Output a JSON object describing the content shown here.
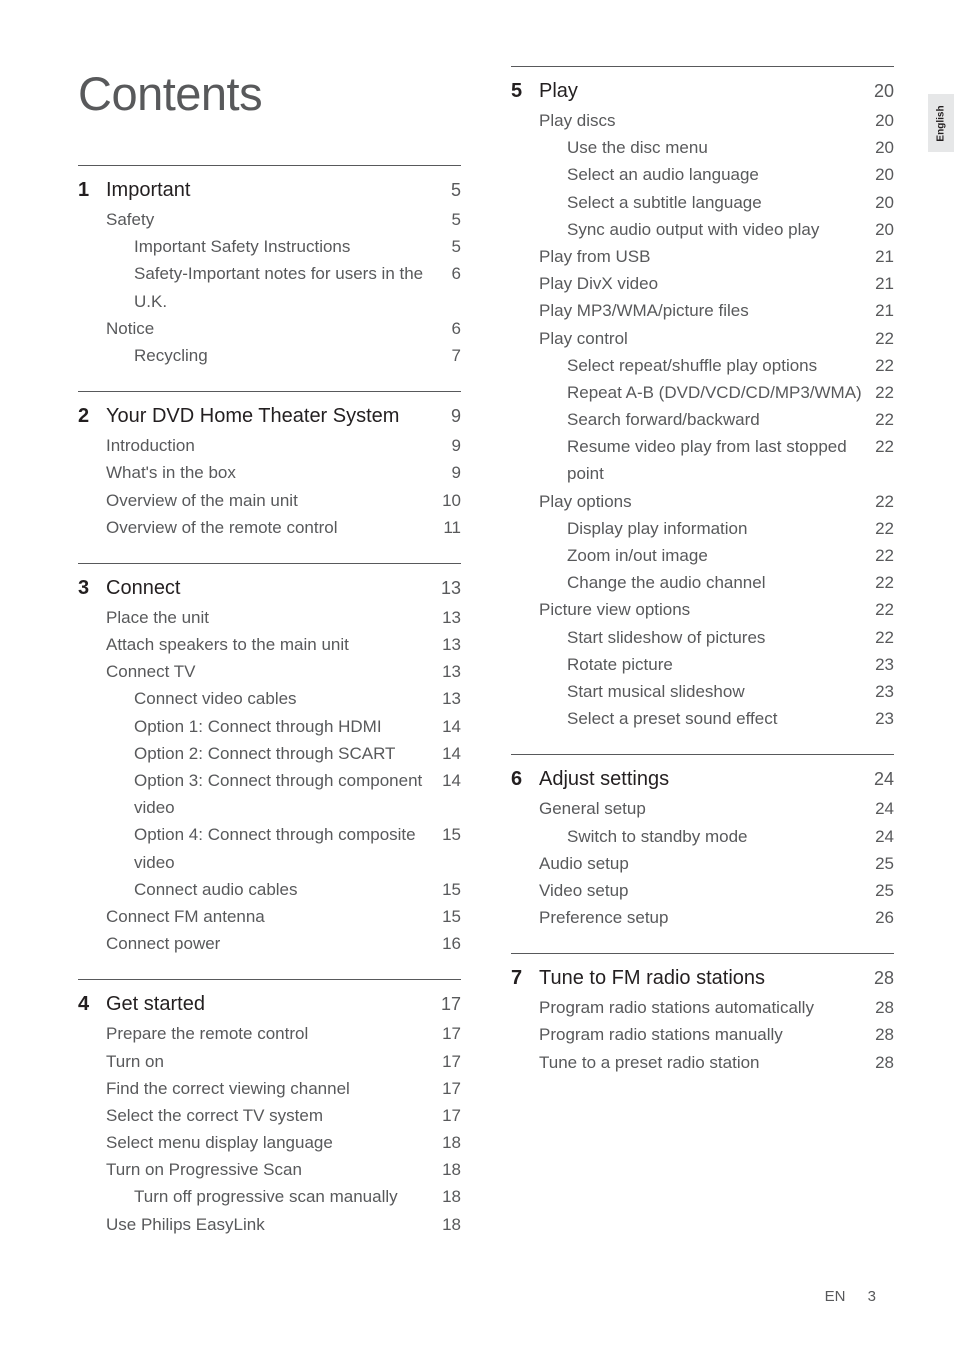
{
  "pageTitle": "Contents",
  "sideTab": "English",
  "footer": {
    "lang": "EN",
    "page": "3"
  },
  "leftSections": [
    {
      "num": "1",
      "rows": [
        {
          "lvl": 0,
          "label": "Important",
          "page": "5"
        },
        {
          "lvl": 1,
          "label": "Safety",
          "page": "5"
        },
        {
          "lvl": 2,
          "label": "Important Safety Instructions",
          "page": "5"
        },
        {
          "lvl": 2,
          "label": "Safety-Important notes for users in the U.K.",
          "page": "6"
        },
        {
          "lvl": 1,
          "label": "Notice",
          "page": "6"
        },
        {
          "lvl": 2,
          "label": "Recycling",
          "page": "7"
        }
      ]
    },
    {
      "num": "2",
      "rows": [
        {
          "lvl": 0,
          "label": "Your DVD Home Theater System",
          "page": "9"
        },
        {
          "lvl": 1,
          "label": "Introduction",
          "page": "9"
        },
        {
          "lvl": 1,
          "label": "What's in the box",
          "page": "9"
        },
        {
          "lvl": 1,
          "label": "Overview of the main unit",
          "page": "10"
        },
        {
          "lvl": 1,
          "label": "Overview of the remote control",
          "page": "11"
        }
      ]
    },
    {
      "num": "3",
      "rows": [
        {
          "lvl": 0,
          "label": "Connect",
          "page": "13"
        },
        {
          "lvl": 1,
          "label": "Place the unit",
          "page": "13"
        },
        {
          "lvl": 1,
          "label": "Attach speakers to the main unit",
          "page": "13"
        },
        {
          "lvl": 1,
          "label": "Connect TV",
          "page": "13"
        },
        {
          "lvl": 2,
          "label": "Connect video cables",
          "page": "13"
        },
        {
          "lvl": 2,
          "label": "Option 1: Connect through HDMI",
          "page": "14"
        },
        {
          "lvl": 2,
          "label": "Option 2: Connect through SCART",
          "page": "14"
        },
        {
          "lvl": 2,
          "label": "Option 3: Connect through component video",
          "page": "14"
        },
        {
          "lvl": 2,
          "label": "Option 4: Connect through composite video",
          "page": "15"
        },
        {
          "lvl": 2,
          "label": "Connect audio cables",
          "page": "15"
        },
        {
          "lvl": 1,
          "label": "Connect FM antenna",
          "page": "15"
        },
        {
          "lvl": 1,
          "label": "Connect power",
          "page": "16"
        }
      ]
    },
    {
      "num": "4",
      "rows": [
        {
          "lvl": 0,
          "label": "Get started",
          "page": "17"
        },
        {
          "lvl": 1,
          "label": "Prepare the remote control",
          "page": "17"
        },
        {
          "lvl": 1,
          "label": "Turn on",
          "page": "17"
        },
        {
          "lvl": 1,
          "label": "Find the correct viewing channel",
          "page": "17"
        },
        {
          "lvl": 1,
          "label": "Select the correct TV system",
          "page": "17"
        },
        {
          "lvl": 1,
          "label": "Select menu display language",
          "page": "18"
        },
        {
          "lvl": 1,
          "label": "Turn on Progressive Scan",
          "page": "18"
        },
        {
          "lvl": 2,
          "label": "Turn off progressive scan manually",
          "page": "18"
        },
        {
          "lvl": 1,
          "label": "Use Philips EasyLink",
          "page": "18"
        }
      ]
    }
  ],
  "rightSections": [
    {
      "num": "5",
      "rows": [
        {
          "lvl": 0,
          "label": "Play",
          "page": "20"
        },
        {
          "lvl": 1,
          "label": "Play discs",
          "page": "20"
        },
        {
          "lvl": 2,
          "label": "Use the disc menu",
          "page": "20"
        },
        {
          "lvl": 2,
          "label": "Select an audio language",
          "page": "20"
        },
        {
          "lvl": 2,
          "label": "Select a subtitle language",
          "page": "20"
        },
        {
          "lvl": 2,
          "label": "Sync audio output with video play",
          "page": "20"
        },
        {
          "lvl": 1,
          "label": "Play from USB",
          "page": "21"
        },
        {
          "lvl": 1,
          "label": "Play DivX video",
          "page": "21"
        },
        {
          "lvl": 1,
          "label": "Play MP3/WMA/picture files",
          "page": "21"
        },
        {
          "lvl": 1,
          "label": "Play control",
          "page": "22"
        },
        {
          "lvl": 2,
          "label": "Select repeat/shuffle play options",
          "page": "22"
        },
        {
          "lvl": 2,
          "label": "Repeat A-B (DVD/VCD/CD/MP3/WMA)",
          "page": "22"
        },
        {
          "lvl": 2,
          "label": "Search forward/backward",
          "page": "22"
        },
        {
          "lvl": 2,
          "label": "Resume video play from last stopped point",
          "page": "22"
        },
        {
          "lvl": 1,
          "label": "Play options",
          "page": "22"
        },
        {
          "lvl": 2,
          "label": "Display play information",
          "page": "22"
        },
        {
          "lvl": 2,
          "label": "Zoom in/out image",
          "page": "22"
        },
        {
          "lvl": 2,
          "label": "Change the audio channel",
          "page": "22"
        },
        {
          "lvl": 1,
          "label": "Picture view options",
          "page": "22"
        },
        {
          "lvl": 2,
          "label": "Start slideshow of pictures",
          "page": "22"
        },
        {
          "lvl": 2,
          "label": "Rotate picture",
          "page": "23"
        },
        {
          "lvl": 2,
          "label": "Start musical slideshow",
          "page": "23"
        },
        {
          "lvl": 2,
          "label": "Select a preset sound effect",
          "page": "23"
        }
      ]
    },
    {
      "num": "6",
      "rows": [
        {
          "lvl": 0,
          "label": "Adjust settings",
          "page": "24"
        },
        {
          "lvl": 1,
          "label": "General setup",
          "page": "24"
        },
        {
          "lvl": 2,
          "label": "Switch to standby mode",
          "page": "24"
        },
        {
          "lvl": 1,
          "label": "Audio setup",
          "page": "25"
        },
        {
          "lvl": 1,
          "label": "Video setup",
          "page": "25"
        },
        {
          "lvl": 1,
          "label": "Preference setup",
          "page": "26"
        }
      ]
    },
    {
      "num": "7",
      "rows": [
        {
          "lvl": 0,
          "label": "Tune to FM radio stations",
          "page": "28"
        },
        {
          "lvl": 1,
          "label": "Program radio stations automatically",
          "page": "28"
        },
        {
          "lvl": 1,
          "label": "Program radio stations manually",
          "page": "28"
        },
        {
          "lvl": 1,
          "label": "Tune to a preset radio station",
          "page": "28"
        }
      ]
    }
  ]
}
